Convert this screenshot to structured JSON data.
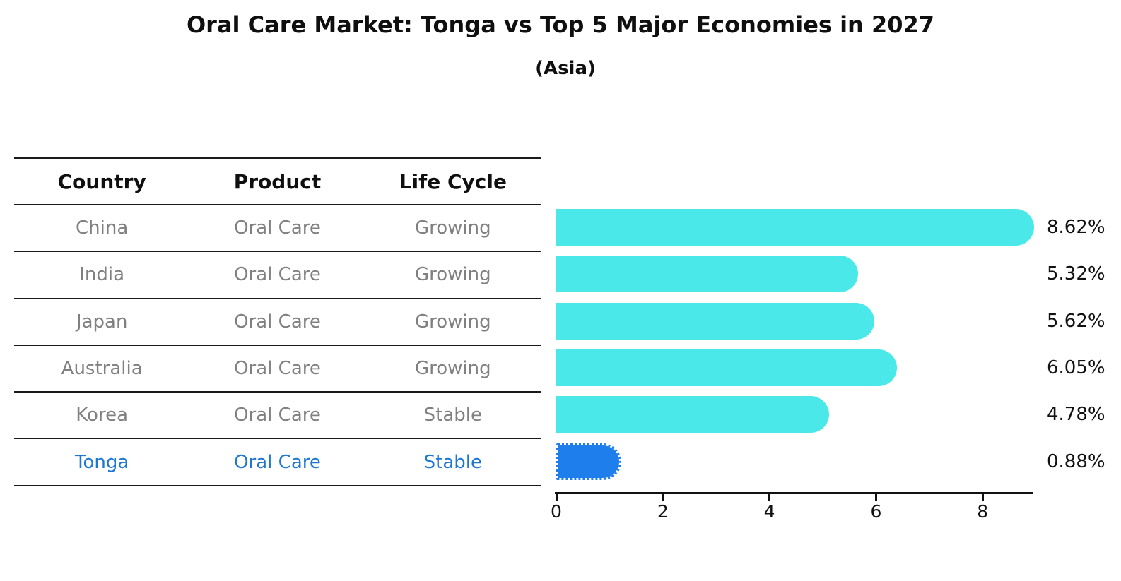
{
  "title": "Oral Care Market: Tonga vs Top 5 Major Economies in 2027",
  "subtitle": "(Asia)",
  "table": {
    "headers": [
      "Country",
      "Product",
      "Life Cycle"
    ],
    "rows": [
      {
        "country": "China",
        "product": "Oral Care",
        "life_cycle": "Growing",
        "highlight": false
      },
      {
        "country": "India",
        "product": "Oral Care",
        "life_cycle": "Growing",
        "highlight": false
      },
      {
        "country": "Japan",
        "product": "Oral Care",
        "life_cycle": "Growing",
        "highlight": false
      },
      {
        "country": "Australia",
        "product": "Oral Care",
        "life_cycle": "Growing",
        "highlight": false
      },
      {
        "country": "Korea",
        "product": "Oral Care",
        "life_cycle": "Stable",
        "highlight": false
      },
      {
        "country": "Tonga",
        "product": "Oral Care",
        "life_cycle": "Stable",
        "highlight": true
      }
    ]
  },
  "chart_data": {
    "type": "bar",
    "orientation": "horizontal",
    "title": "Oral Care Market: Tonga vs Top 5 Major Economies in 2027",
    "subtitle": "(Asia)",
    "categories": [
      "China",
      "India",
      "Japan",
      "Australia",
      "Korea",
      "Tonga"
    ],
    "values": [
      8.62,
      5.32,
      5.62,
      6.05,
      4.78,
      0.88
    ],
    "value_labels": [
      "8.62%",
      "5.32%",
      "5.62%",
      "6.05%",
      "4.78%",
      "0.88%"
    ],
    "xlabel": "",
    "ylabel": "",
    "xlim": [
      0,
      9
    ],
    "xticks": [
      0,
      2,
      4,
      6,
      8
    ],
    "grid": false,
    "legend": false,
    "highlight_index": 5
  },
  "colors": {
    "bar_color": "#4ae8e8",
    "highlight_bar_color": "#1e7eeb",
    "highlight_text_color": "#1e78d2",
    "row_text_color": "#808080",
    "header_text_color": "#0f0f0f",
    "axis_color": "#111111"
  }
}
